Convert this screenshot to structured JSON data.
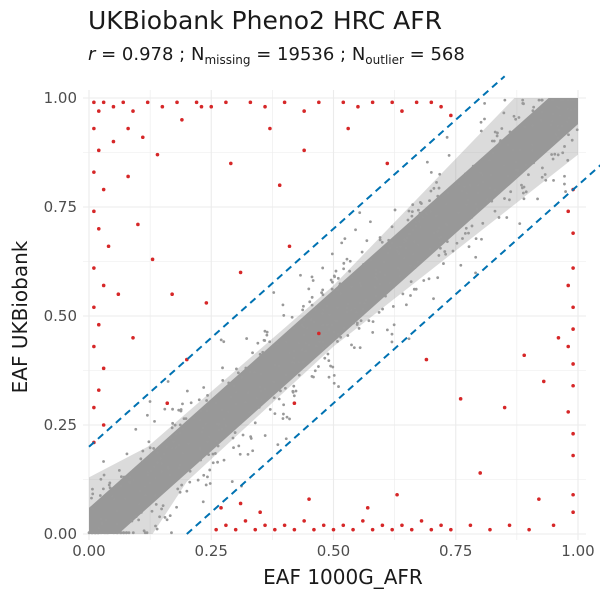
{
  "title": "UKBiobank Pheno2 HRC AFR",
  "subtitle": {
    "r_symbol": "r",
    "r_text": " = 0.978 ; N",
    "missing_sub": "missing",
    "missing_text": " = 19536 ; N",
    "outlier_sub": "outlier",
    "outlier_text": " = 568"
  },
  "colors": {
    "points": "#999999",
    "outliers": "#d62728",
    "threshold_lines": "#0072b2",
    "grid": "#ebebeb"
  },
  "chart_data": {
    "type": "scatter",
    "title": "UKBiobank Pheno2 HRC AFR",
    "xlabel": "EAF 1000G_AFR",
    "ylabel": "EAF UKBiobank",
    "xlim": [
      0,
      1
    ],
    "ylim": [
      0,
      1
    ],
    "x_ticks": [
      "0.00",
      "0.25",
      "0.50",
      "0.75",
      "1.00"
    ],
    "y_ticks": [
      "0.00",
      "0.25",
      "0.50",
      "0.75",
      "1.00"
    ],
    "grid": true,
    "legend": "none",
    "stats": {
      "r": 0.978,
      "N_missing": 19536,
      "N_outlier": 568
    },
    "reference_lines": [
      {
        "name": "upper",
        "intercept": 0.2,
        "slope": 1,
        "style": "dashed"
      },
      {
        "name": "lower",
        "intercept": -0.2,
        "slope": 1,
        "style": "dashed"
      }
    ],
    "series": [
      {
        "category": "outliers",
        "points": [
          [
            0.01,
            0.99
          ],
          [
            0.02,
            0.97
          ],
          [
            0.03,
            0.99
          ],
          [
            0.05,
            0.98
          ],
          [
            0.07,
            0.99
          ],
          [
            0.09,
            0.97
          ],
          [
            0.12,
            0.99
          ],
          [
            0.15,
            0.98
          ],
          [
            0.18,
            0.99
          ],
          [
            0.22,
            0.99
          ],
          [
            0.25,
            0.98
          ],
          [
            0.28,
            0.99
          ],
          [
            0.33,
            0.99
          ],
          [
            0.36,
            0.98
          ],
          [
            0.4,
            0.99
          ],
          [
            0.44,
            0.97
          ],
          [
            0.47,
            0.99
          ],
          [
            0.52,
            0.99
          ],
          [
            0.55,
            0.98
          ],
          [
            0.58,
            0.99
          ],
          [
            0.62,
            0.99
          ],
          [
            0.64,
            0.97
          ],
          [
            0.67,
            0.99
          ],
          [
            0.7,
            0.99
          ],
          [
            0.72,
            0.98
          ],
          [
            0.74,
            0.96
          ],
          [
            0.01,
            0.93
          ],
          [
            0.02,
            0.88
          ],
          [
            0.01,
            0.83
          ],
          [
            0.03,
            0.79
          ],
          [
            0.01,
            0.74
          ],
          [
            0.02,
            0.7
          ],
          [
            0.04,
            0.66
          ],
          [
            0.01,
            0.61
          ],
          [
            0.03,
            0.57
          ],
          [
            0.01,
            0.52
          ],
          [
            0.02,
            0.48
          ],
          [
            0.01,
            0.43
          ],
          [
            0.03,
            0.38
          ],
          [
            0.02,
            0.33
          ],
          [
            0.01,
            0.29
          ],
          [
            0.03,
            0.25
          ],
          [
            0.01,
            0.21
          ],
          [
            0.05,
            0.9
          ],
          [
            0.08,
            0.82
          ],
          [
            0.1,
            0.71
          ],
          [
            0.13,
            0.63
          ],
          [
            0.17,
            0.55
          ],
          [
            0.24,
            0.53
          ],
          [
            0.2,
            0.4
          ],
          [
            0.31,
            0.6
          ],
          [
            0.41,
            0.66
          ],
          [
            0.39,
            0.8
          ],
          [
            0.42,
            0.3
          ],
          [
            0.47,
            0.46
          ],
          [
            0.08,
            0.93
          ],
          [
            0.11,
            0.91
          ],
          [
            0.14,
            0.87
          ],
          [
            0.19,
            0.95
          ],
          [
            0.23,
            0.98
          ],
          [
            0.29,
            0.85
          ],
          [
            0.37,
            0.93
          ],
          [
            0.44,
            0.88
          ],
          [
            0.53,
            0.93
          ],
          [
            0.61,
            0.85
          ],
          [
            0.26,
            0.01
          ],
          [
            0.28,
            0.02
          ],
          [
            0.3,
            0.01
          ],
          [
            0.32,
            0.03
          ],
          [
            0.34,
            0.01
          ],
          [
            0.36,
            0.02
          ],
          [
            0.38,
            0.01
          ],
          [
            0.4,
            0.02
          ],
          [
            0.42,
            0.01
          ],
          [
            0.44,
            0.03
          ],
          [
            0.46,
            0.01
          ],
          [
            0.48,
            0.02
          ],
          [
            0.5,
            0.01
          ],
          [
            0.52,
            0.02
          ],
          [
            0.54,
            0.01
          ],
          [
            0.56,
            0.03
          ],
          [
            0.58,
            0.01
          ],
          [
            0.6,
            0.02
          ],
          [
            0.62,
            0.01
          ],
          [
            0.64,
            0.02
          ],
          [
            0.66,
            0.01
          ],
          [
            0.68,
            0.03
          ],
          [
            0.7,
            0.01
          ],
          [
            0.72,
            0.02
          ],
          [
            0.74,
            0.01
          ],
          [
            0.78,
            0.02
          ],
          [
            0.82,
            0.01
          ],
          [
            0.86,
            0.02
          ],
          [
            0.9,
            0.01
          ],
          [
            0.95,
            0.02
          ],
          [
            0.99,
            0.05
          ],
          [
            0.27,
            0.06
          ],
          [
            0.31,
            0.07
          ],
          [
            0.35,
            0.05
          ],
          [
            0.45,
            0.08
          ],
          [
            0.57,
            0.06
          ],
          [
            0.63,
            0.09
          ],
          [
            0.99,
            0.09
          ],
          [
            0.99,
            0.18
          ],
          [
            0.99,
            0.23
          ],
          [
            0.98,
            0.28
          ],
          [
            0.99,
            0.34
          ],
          [
            0.99,
            0.39
          ],
          [
            0.98,
            0.43
          ],
          [
            0.99,
            0.47
          ],
          [
            0.99,
            0.52
          ],
          [
            0.98,
            0.57
          ],
          [
            0.99,
            0.61
          ],
          [
            0.99,
            0.69
          ],
          [
            0.98,
            0.74
          ],
          [
            0.99,
            0.79
          ],
          [
            0.92,
            0.08
          ],
          [
            0.8,
            0.14
          ],
          [
            0.85,
            0.29
          ],
          [
            0.89,
            0.41
          ],
          [
            0.93,
            0.35
          ],
          [
            0.96,
            0.45
          ],
          [
            0.76,
            0.31
          ],
          [
            0.69,
            0.4
          ],
          [
            0.16,
            0.3
          ],
          [
            0.09,
            0.45
          ],
          [
            0.06,
            0.55
          ]
        ]
      }
    ]
  }
}
